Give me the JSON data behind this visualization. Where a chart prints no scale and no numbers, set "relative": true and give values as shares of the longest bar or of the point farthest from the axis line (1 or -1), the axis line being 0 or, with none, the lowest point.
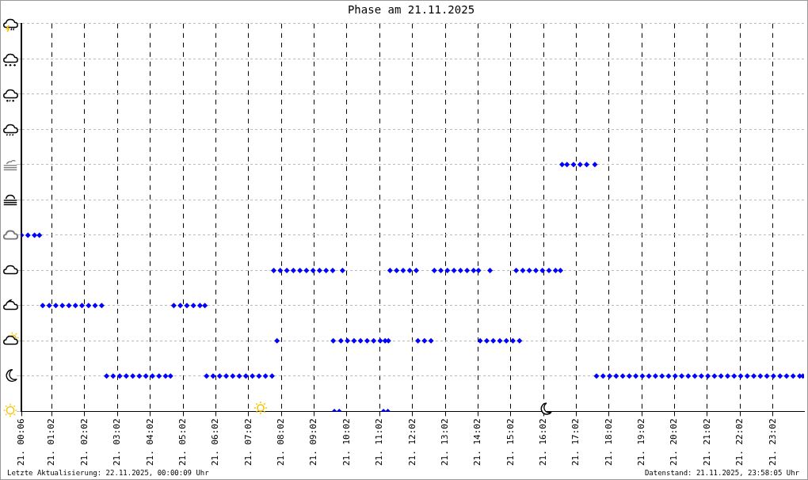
{
  "chart_data": {
    "type": "scatter",
    "title": "Phase am 21.11.2025",
    "x": [
      "2025-11-21T00:06",
      "2025-11-21T00:18",
      "2025-11-21T00:30",
      "2025-11-21T00:39",
      "2025-11-21T00:45",
      "2025-11-21T00:57",
      "2025-11-21T01:09",
      "2025-11-21T01:21",
      "2025-11-21T01:33",
      "2025-11-21T01:45",
      "2025-11-21T01:57",
      "2025-11-21T02:09",
      "2025-11-21T02:21",
      "2025-11-21T02:33",
      "2025-11-21T02:42",
      "2025-11-21T02:54",
      "2025-11-21T03:06",
      "2025-11-21T03:18",
      "2025-11-21T03:30",
      "2025-11-21T03:42",
      "2025-11-21T03:54",
      "2025-11-21T04:06",
      "2025-11-21T04:18",
      "2025-11-21T04:30",
      "2025-11-21T04:39",
      "2025-11-21T04:45",
      "2025-11-21T04:57",
      "2025-11-21T05:09",
      "2025-11-21T05:21",
      "2025-11-21T05:33",
      "2025-11-21T05:42",
      "2025-11-21T05:45",
      "2025-11-21T05:57",
      "2025-11-21T06:09",
      "2025-11-21T06:21",
      "2025-11-21T06:33",
      "2025-11-21T06:45",
      "2025-11-21T06:57",
      "2025-11-21T07:09",
      "2025-11-21T07:21",
      "2025-11-21T07:33",
      "2025-11-21T07:45",
      "2025-11-21T07:48",
      "2025-11-21T08:00",
      "2025-11-21T08:12",
      "2025-11-21T08:24",
      "2025-11-21T08:36",
      "2025-11-21T08:48",
      "2025-11-21T09:00",
      "2025-11-21T09:12",
      "2025-11-21T09:24",
      "2025-11-21T09:36",
      "2025-11-21T07:54",
      "2025-11-21T09:39",
      "2025-11-21T09:48",
      "2025-11-21T09:37",
      "2025-11-21T09:54",
      "2025-11-21T09:51",
      "2025-11-21T10:03",
      "2025-11-21T10:15",
      "2025-11-21T10:27",
      "2025-11-21T10:39",
      "2025-11-21T10:51",
      "2025-11-21T11:03",
      "2025-11-21T11:12",
      "2025-11-21T11:09",
      "2025-11-21T11:17",
      "2025-11-21T11:18",
      "2025-11-21T11:21",
      "2025-11-21T11:33",
      "2025-11-21T11:45",
      "2025-11-21T11:57",
      "2025-11-21T12:09",
      "2025-11-21T12:12",
      "2025-11-21T12:24",
      "2025-11-21T12:36",
      "2025-11-21T12:42",
      "2025-11-21T12:54",
      "2025-11-21T13:06",
      "2025-11-21T13:18",
      "2025-11-21T13:30",
      "2025-11-21T13:42",
      "2025-11-21T13:54",
      "2025-11-21T14:03",
      "2025-11-21T14:24",
      "2025-11-21T14:06",
      "2025-11-21T14:18",
      "2025-11-21T14:30",
      "2025-11-21T14:42",
      "2025-11-21T14:54",
      "2025-11-21T15:06",
      "2025-11-21T15:18",
      "2025-11-21T15:12",
      "2025-11-21T15:24",
      "2025-11-21T15:36",
      "2025-11-21T15:48",
      "2025-11-21T16:00",
      "2025-11-21T16:12",
      "2025-11-21T16:24",
      "2025-11-21T16:33",
      "2025-11-21T16:36",
      "2025-11-21T16:45",
      "2025-11-21T16:57",
      "2025-11-21T17:09",
      "2025-11-21T17:21",
      "2025-11-21T17:36",
      "2025-11-21T17:39",
      "2025-11-21T17:51",
      "2025-11-21T18:03",
      "2025-11-21T18:15",
      "2025-11-21T18:27",
      "2025-11-21T18:39",
      "2025-11-21T18:51",
      "2025-11-21T19:03",
      "2025-11-21T19:15",
      "2025-11-21T19:27",
      "2025-11-21T19:39",
      "2025-11-21T19:51",
      "2025-11-21T20:03",
      "2025-11-21T20:15",
      "2025-11-21T20:27",
      "2025-11-21T20:39",
      "2025-11-21T20:51",
      "2025-11-21T21:03",
      "2025-11-21T21:15",
      "2025-11-21T21:27",
      "2025-11-21T21:39",
      "2025-11-21T21:51",
      "2025-11-21T22:03",
      "2025-11-21T22:15",
      "2025-11-21T22:27",
      "2025-11-21T22:39",
      "2025-11-21T22:51",
      "2025-11-21T23:03",
      "2025-11-21T23:15",
      "2025-11-21T23:27",
      "2025-11-21T23:39",
      "2025-11-21T23:51",
      "2025-11-21T23:57"
    ],
    "relative": true,
    "values": [
      0.714,
      0.714,
      0.714,
      0.714,
      0.429,
      0.429,
      0.429,
      0.429,
      0.429,
      0.429,
      0.429,
      0.429,
      0.429,
      0.429,
      0.143,
      0.143,
      0.143,
      0.143,
      0.143,
      0.143,
      0.143,
      0.143,
      0.143,
      0.143,
      0.143,
      0.429,
      0.429,
      0.429,
      0.429,
      0.429,
      0.429,
      0.143,
      0.143,
      0.143,
      0.143,
      0.143,
      0.143,
      0.143,
      0.143,
      0.143,
      0.143,
      0.143,
      0.571,
      0.571,
      0.571,
      0.571,
      0.571,
      0.571,
      0.571,
      0.571,
      0.571,
      0.571,
      0.286,
      0,
      0,
      0.286,
      0.571,
      0.286,
      0.286,
      0.286,
      0.286,
      0.286,
      0.286,
      0.286,
      0.286,
      0,
      0,
      0.286,
      0.571,
      0.571,
      0.571,
      0.571,
      0.571,
      0.286,
      0.286,
      0.286,
      0.571,
      0.571,
      0.571,
      0.571,
      0.571,
      0.571,
      0.571,
      0.571,
      0.571,
      0.286,
      0.286,
      0.286,
      0.286,
      0.286,
      0.286,
      0.286,
      0.571,
      0.571,
      0.571,
      0.571,
      0.571,
      0.571,
      0.571,
      0.571,
      1,
      1,
      1,
      1,
      1,
      1,
      0.143,
      0.143,
      0.143,
      0.143,
      0.143,
      0.143,
      0.143,
      0.143,
      0.143,
      0.143,
      0.143,
      0.143,
      0.143,
      0.143,
      0.143,
      0.143,
      0.143,
      0.143,
      0.143,
      0.143,
      0.143,
      0.143,
      0.143,
      0.143,
      0.143,
      0.143,
      0.143,
      0.143,
      0.143,
      0.143,
      0.143,
      0.143,
      0.143
    ],
    "color": "#0000ff",
    "marker": "diamond",
    "grid": true,
    "xlim": [
      "2025-11-21T00:06",
      "2025-11-21T23:59"
    ],
    "xticks": [
      {
        "value": "2025-11-21T00:06",
        "label": "21. 00:06"
      },
      {
        "value": "2025-11-21T01:02",
        "label": "21. 01:02"
      },
      {
        "value": "2025-11-21T02:02",
        "label": "21. 02:02"
      },
      {
        "value": "2025-11-21T03:02",
        "label": "21. 03:02"
      },
      {
        "value": "2025-11-21T04:02",
        "label": "21. 04:02"
      },
      {
        "value": "2025-11-21T05:02",
        "label": "21. 05:02"
      },
      {
        "value": "2025-11-21T06:02",
        "label": "21. 06:02"
      },
      {
        "value": "2025-11-21T07:02",
        "label": "21. 07:02"
      },
      {
        "value": "2025-11-21T08:02",
        "label": "21. 08:02"
      },
      {
        "value": "2025-11-21T09:02",
        "label": "21. 09:02"
      },
      {
        "value": "2025-11-21T10:02",
        "label": "21. 10:02"
      },
      {
        "value": "2025-11-21T11:02",
        "label": "21. 11:02"
      },
      {
        "value": "2025-11-21T12:02",
        "label": "21. 12:02"
      },
      {
        "value": "2025-11-21T13:02",
        "label": "21. 13:02"
      },
      {
        "value": "2025-11-21T14:02",
        "label": "21. 14:02"
      },
      {
        "value": "2025-11-21T15:02",
        "label": "21. 15:02"
      },
      {
        "value": "2025-11-21T16:02",
        "label": "21. 16:02"
      },
      {
        "value": "2025-11-21T17:02",
        "label": "21. 17:02"
      },
      {
        "value": "2025-11-21T18:02",
        "label": "21. 18:02"
      },
      {
        "value": "2025-11-21T19:02",
        "label": "21. 19:02"
      },
      {
        "value": "2025-11-21T20:02",
        "label": "21. 20:02"
      },
      {
        "value": "2025-11-21T21:02",
        "label": "21. 21:02"
      },
      {
        "value": "2025-11-21T22:02",
        "label": "21. 22:02"
      },
      {
        "value": "2025-11-21T23:02",
        "label": "21. 23:02"
      }
    ],
    "tick_labels": "x",
    "annotations": [
      "Letzte Aktualisierung: 22.11.2025, 00:00:09 Uhr",
      "Datenstand: 21.11.2025, 23:58:05 Uhr"
    ]
  }
}
